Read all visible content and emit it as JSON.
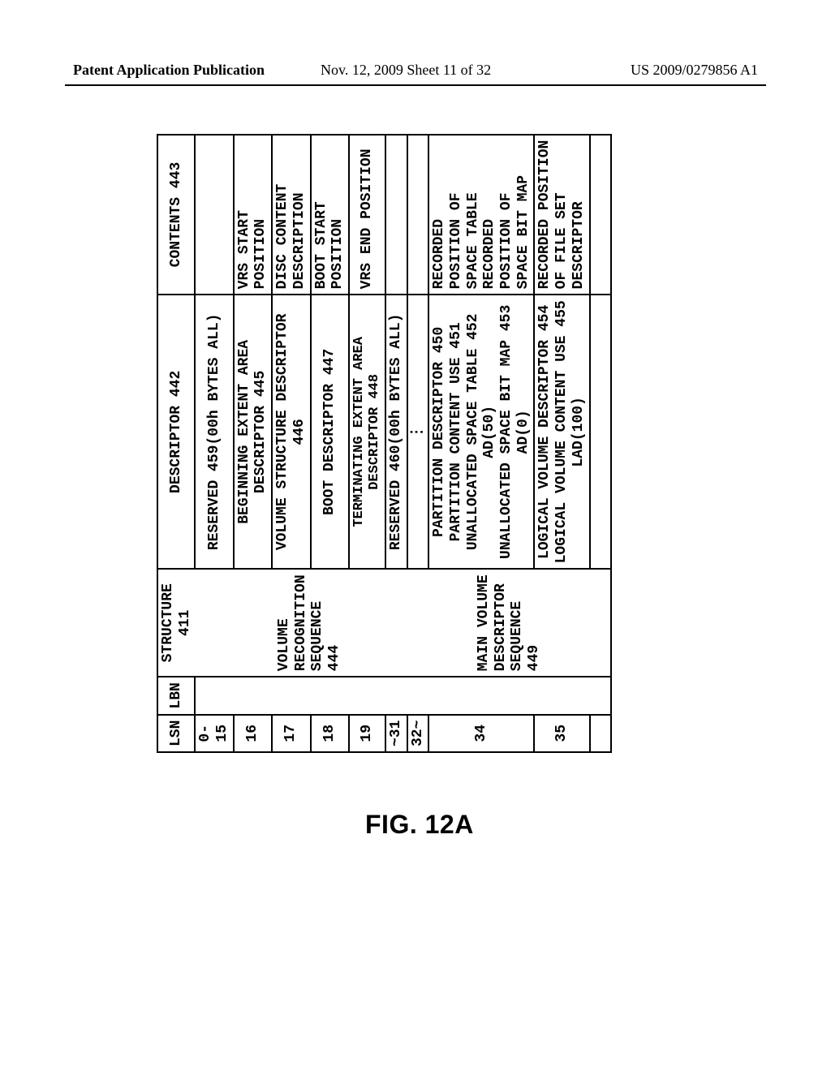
{
  "header": {
    "left": "Patent Application Publication",
    "center": "Nov. 12, 2009  Sheet 11 of 32",
    "right": "US 2009/0279856 A1"
  },
  "figure_label": "FIG. 12A",
  "table": {
    "columns": {
      "lsn": "LSN",
      "lbn": "LBN",
      "structure": "STRUCTURE 411",
      "descriptor": "DESCRIPTOR 442",
      "contents": "CONTENTS 443"
    },
    "rows": [
      {
        "lsn": "0-15",
        "desc": "RESERVED 459(00h BYTES ALL)",
        "cont": ""
      },
      {
        "lsn": "16",
        "desc": "BEGINNING EXTENT AREA DESCRIPTOR 445",
        "cont": "VRS START POSITION"
      },
      {
        "lsn": "17",
        "desc": "VOLUME STRUCTURE DESCRIPTOR 446",
        "cont": "DISC CONTENT DESCRIPTION"
      },
      {
        "lsn": "18",
        "desc": "BOOT DESCRIPTOR 447",
        "cont": "BOOT START POSITION"
      },
      {
        "lsn": "19",
        "desc": "TERMINATING EXTENT AREA DESCRIPTOR 448",
        "cont": "VRS END POSITION"
      },
      {
        "lsn": "~31",
        "desc": "RESERVED 460(00h BYTES ALL)",
        "cont": ""
      },
      {
        "lsn": "32~",
        "desc": "⋮",
        "cont": ""
      },
      {
        "lsn": "34",
        "desc": "PARTITION DESCRIPTOR 450\nPARTITION CONTENT USE 451\nUNALLOCATED SPACE TABLE 452\nAD(50)\nUNALLOCATED SPACE BIT MAP 453\nAD(0)",
        "cont": "RECORDED\nPOSITION OF\nSPACE TABLE\nRECORDED\nPOSITION OF\nSPACE BIT MAP"
      },
      {
        "lsn": "35",
        "desc": "LOGICAL VOLUME DESCRIPTOR 454\nLOGICAL VOLUME CONTENT USE 455\nLAD(100)",
        "cont": "RECORDED POSITION\nOF FILE SET\nDESCRIPTOR"
      }
    ],
    "structure_labels": {
      "vrs": "VOLUME\nRECOGNITION\nSEQUENCE\n444",
      "mvds": "MAIN\nVOLUME\nDESCRIPTOR\nSEQUENCE\n449"
    }
  }
}
